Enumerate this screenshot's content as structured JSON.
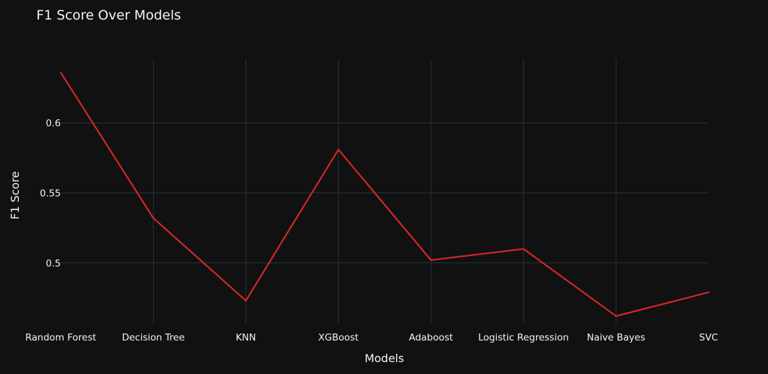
{
  "chart_data": {
    "type": "line",
    "title": "F1 Score Over Models",
    "xlabel": "Models",
    "ylabel": "F1 Score",
    "categories": [
      "Random Forest",
      "Decision Tree",
      "KNN",
      "XGBoost",
      "Adaboost",
      "Logistic Regression",
      "Naive Bayes",
      "SVC"
    ],
    "series": [
      {
        "values": [
          0.636,
          0.532,
          0.473,
          0.581,
          0.502,
          0.51,
          0.462,
          0.479
        ],
        "color": "#d62728"
      }
    ],
    "yticks": [
      0.5,
      0.55,
      0.6
    ],
    "ytick_labels": [
      "0.5",
      "0.55",
      "0.6"
    ],
    "ylim": [
      0.4565,
      0.6455
    ],
    "grid": true,
    "colors": {
      "background": "#111111",
      "grid": "#283442",
      "text": "#f2f5fa"
    }
  }
}
